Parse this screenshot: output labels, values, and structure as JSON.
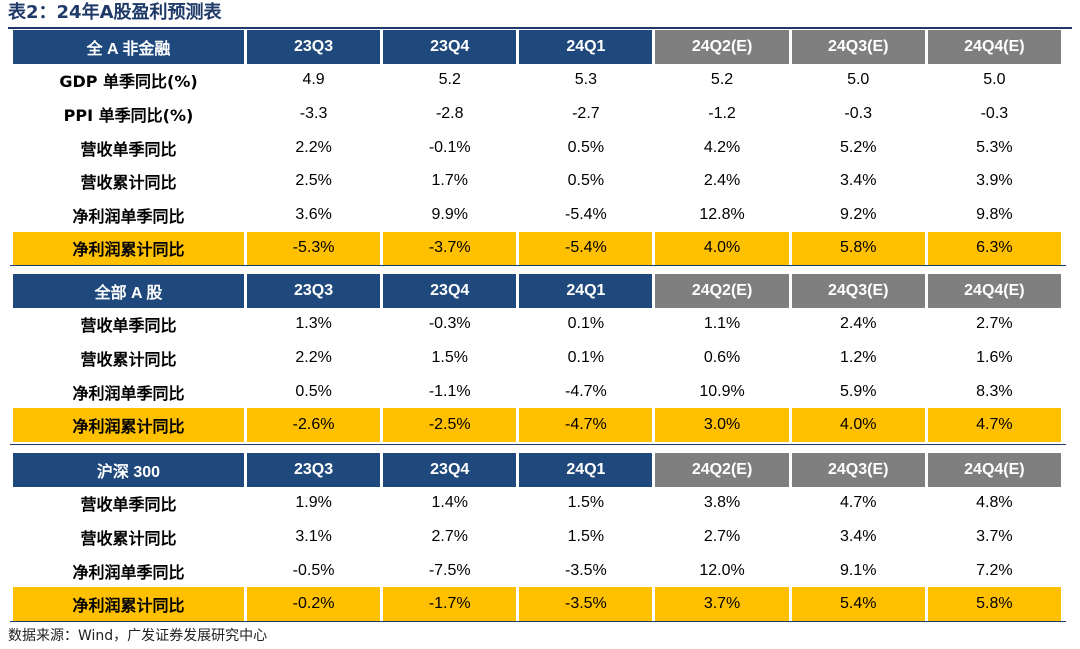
{
  "title": "表2：24年A股盈利预测表",
  "columns": [
    "23Q3",
    "23Q4",
    "24Q1",
    "24Q2(E)",
    "24Q3(E)",
    "24Q4(E)"
  ],
  "sections": [
    {
      "name": "全 A 非金融",
      "rows": [
        {
          "label": "GDP 单季同比(%)",
          "values": [
            "4.9",
            "5.2",
            "5.3",
            "5.2",
            "5.0",
            "5.0"
          ],
          "highlight": false
        },
        {
          "label": "PPI 单季同比(%)",
          "values": [
            "-3.3",
            "-2.8",
            "-2.7",
            "-1.2",
            "-0.3",
            "-0.3"
          ],
          "highlight": false
        },
        {
          "label": "营收单季同比",
          "values": [
            "2.2%",
            "-0.1%",
            "0.5%",
            "4.2%",
            "5.2%",
            "5.3%"
          ],
          "highlight": false
        },
        {
          "label": "营收累计同比",
          "values": [
            "2.5%",
            "1.7%",
            "0.5%",
            "2.4%",
            "3.4%",
            "3.9%"
          ],
          "highlight": false
        },
        {
          "label": "净利润单季同比",
          "values": [
            "3.6%",
            "9.9%",
            "-5.4%",
            "12.8%",
            "9.2%",
            "9.8%"
          ],
          "highlight": false
        },
        {
          "label": "净利润累计同比",
          "values": [
            "-5.3%",
            "-3.7%",
            "-5.4%",
            "4.0%",
            "5.8%",
            "6.3%"
          ],
          "highlight": true
        }
      ]
    },
    {
      "name": "全部 A 股",
      "rows": [
        {
          "label": "营收单季同比",
          "values": [
            "1.3%",
            "-0.3%",
            "0.1%",
            "1.1%",
            "2.4%",
            "2.7%"
          ],
          "highlight": false
        },
        {
          "label": "营收累计同比",
          "values": [
            "2.2%",
            "1.5%",
            "0.1%",
            "0.6%",
            "1.2%",
            "1.6%"
          ],
          "highlight": false
        },
        {
          "label": "净利润单季同比",
          "values": [
            "0.5%",
            "-1.1%",
            "-4.7%",
            "10.9%",
            "5.9%",
            "8.3%"
          ],
          "highlight": false
        },
        {
          "label": "净利润累计同比",
          "values": [
            "-2.6%",
            "-2.5%",
            "-4.7%",
            "3.0%",
            "4.0%",
            "4.7%"
          ],
          "highlight": true
        }
      ]
    },
    {
      "name": "沪深 300",
      "rows": [
        {
          "label": "营收单季同比",
          "values": [
            "1.9%",
            "1.4%",
            "1.5%",
            "3.8%",
            "4.7%",
            "4.8%"
          ],
          "highlight": false
        },
        {
          "label": "营收累计同比",
          "values": [
            "3.1%",
            "2.7%",
            "1.5%",
            "2.7%",
            "3.4%",
            "3.7%"
          ],
          "highlight": false
        },
        {
          "label": "净利润单季同比",
          "values": [
            "-0.5%",
            "-7.5%",
            "-3.5%",
            "12.0%",
            "9.1%",
            "7.2%"
          ],
          "highlight": false
        },
        {
          "label": "净利润累计同比",
          "values": [
            "-0.2%",
            "-1.7%",
            "-3.5%",
            "3.7%",
            "5.4%",
            "5.8%"
          ],
          "highlight": true
        }
      ]
    }
  ],
  "source": "数据来源：Wind，广发证券发展研究中心",
  "colors": {
    "header_actual": "#1f497d",
    "header_estimate": "#7f7f7f",
    "highlight_row": "#ffc000"
  }
}
